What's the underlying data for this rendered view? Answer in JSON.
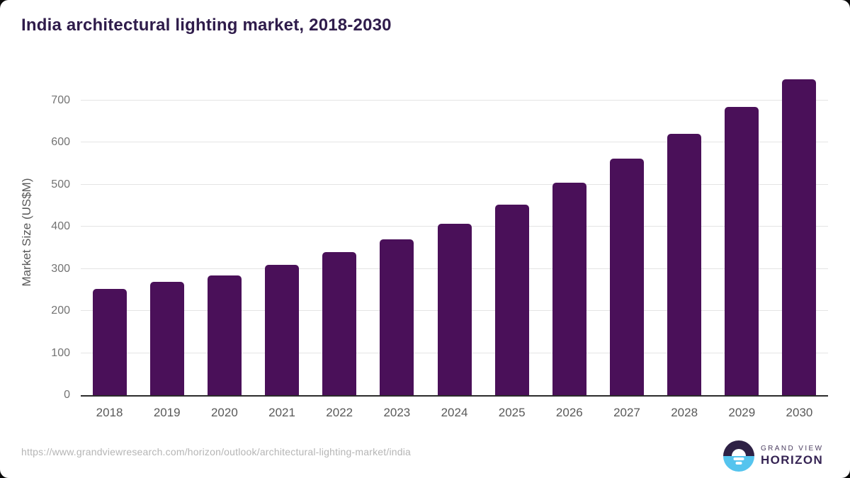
{
  "header": {
    "title": "India architectural lighting market, 2018-2030"
  },
  "chart_data": {
    "type": "bar",
    "title": "India architectural lighting market, 2018-2030",
    "categories": [
      "2018",
      "2019",
      "2020",
      "2021",
      "2022",
      "2023",
      "2024",
      "2025",
      "2026",
      "2027",
      "2028",
      "2029",
      "2030"
    ],
    "values": [
      253,
      269,
      285,
      310,
      339,
      370,
      407,
      453,
      505,
      561,
      621,
      684,
      750
    ],
    "xlabel": "",
    "ylabel": "Market Size (US$M)",
    "ylim": [
      0,
      772
    ],
    "yticks": [
      0,
      100,
      200,
      300,
      400,
      500,
      600,
      700
    ],
    "grid": true,
    "legend": false,
    "bar_color": "#4a1059"
  },
  "footer": {
    "source_url": "https://www.grandviewresearch.com/horizon/outlook/architectural-lighting-market/india",
    "logo": {
      "top_text": "GRAND VIEW",
      "bottom_text": "HORIZON"
    }
  },
  "colors": {
    "title": "#2f1c4b",
    "bar": "#4a1059",
    "gridline": "#e4e4e4",
    "axis": "#2b2b2b",
    "tick_text": "#737373",
    "axis_label_text": "#595959",
    "source_text": "#b5b5b5",
    "logo_dark": "#2e2145",
    "logo_blue": "#55c4ee"
  }
}
